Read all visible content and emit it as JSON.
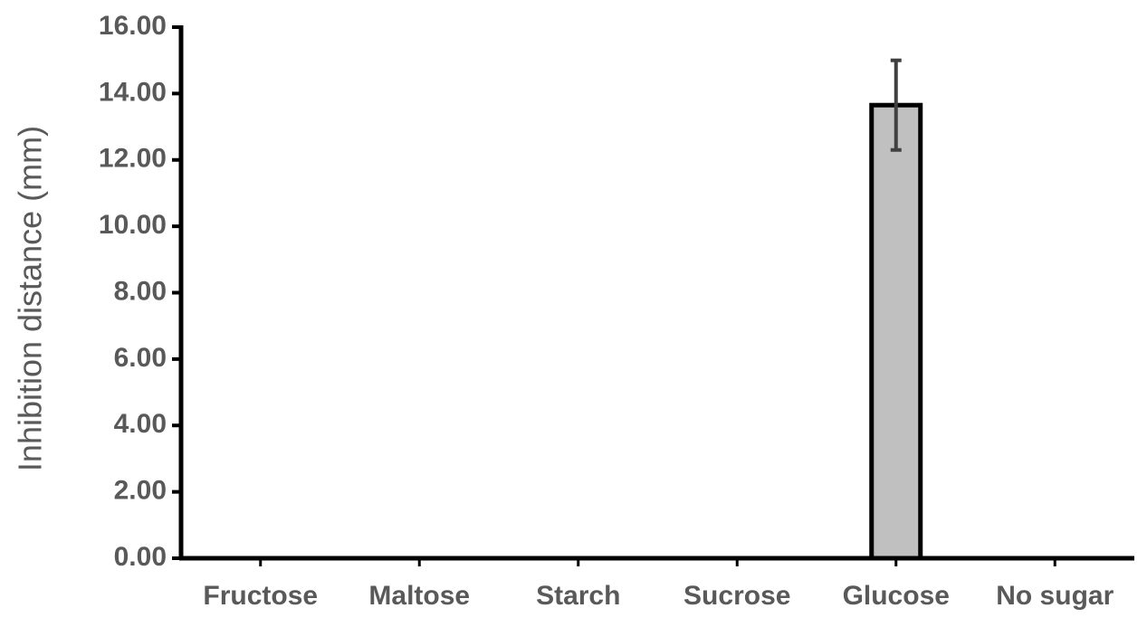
{
  "chart_data": {
    "type": "bar",
    "y_label": "Inhibition distance (mm)",
    "categories": [
      "Fructose",
      "Maltose",
      "Starch",
      "Sucrose",
      "Glucose",
      "No sugar"
    ],
    "values": [
      0,
      0,
      0,
      0,
      13.65,
      0
    ],
    "errors": [
      0,
      0,
      0,
      0,
      1.35,
      0
    ],
    "color": "#c0c0c0",
    "ylim": [
      0,
      16
    ],
    "yticks": [
      {
        "value": 0,
        "label": "0.00"
      },
      {
        "value": 2,
        "label": "2.00"
      },
      {
        "value": 4,
        "label": "4.00"
      },
      {
        "value": 6,
        "label": "6.00"
      },
      {
        "value": 8,
        "label": "8.00"
      },
      {
        "value": 10,
        "label": "10.00"
      },
      {
        "value": 12,
        "label": "12.00"
      },
      {
        "value": 14,
        "label": "14.00"
      },
      {
        "value": 16,
        "label": "16.00"
      }
    ]
  }
}
